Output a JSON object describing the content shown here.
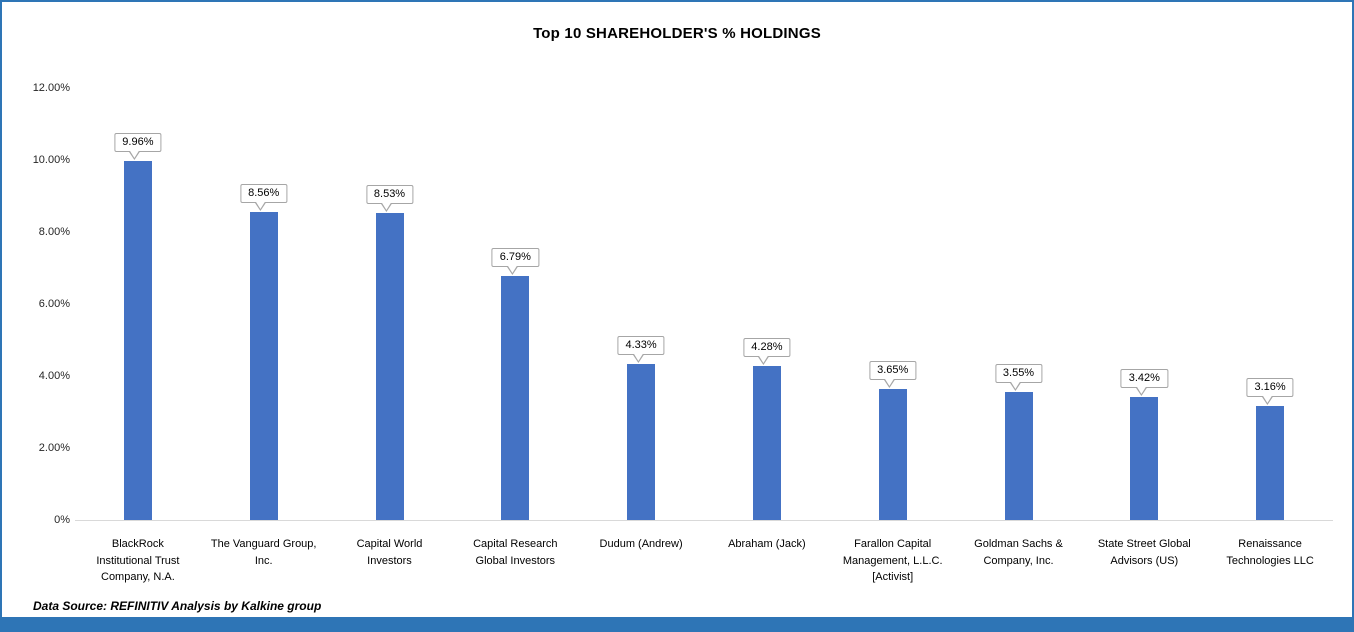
{
  "chart_data": {
    "type": "bar",
    "title": "Top 10 SHAREHOLDER'S % HOLDINGS",
    "categories": [
      "BlackRock\nInstitutional Trust\nCompany, N.A.",
      "The Vanguard Group,\nInc.",
      "Capital World\nInvestors",
      "Capital Research\nGlobal Investors",
      "Dudum (Andrew)",
      "Abraham (Jack)",
      "Farallon Capital\nManagement, L.L.C.\n[Activist]",
      "Goldman Sachs &\nCompany, Inc.",
      "State Street Global\nAdvisors (US)",
      "Renaissance\nTechnologies LLC"
    ],
    "values": [
      9.96,
      8.56,
      8.53,
      6.79,
      4.33,
      4.28,
      3.65,
      3.55,
      3.42,
      3.16
    ],
    "data_labels": [
      "9.96%",
      "8.56%",
      "8.53%",
      "6.79%",
      "4.33%",
      "4.28%",
      "3.65%",
      "3.55%",
      "3.42%",
      "3.16%"
    ],
    "xlabel": "",
    "ylabel": "",
    "ylim": [
      0,
      12
    ],
    "yticks": [
      {
        "value": 12,
        "label": "12.00%"
      },
      {
        "value": 10,
        "label": "10.00%"
      },
      {
        "value": 8,
        "label": "8.00%"
      },
      {
        "value": 6,
        "label": "6.00%"
      },
      {
        "value": 4,
        "label": "4.00%"
      },
      {
        "value": 2,
        "label": "2.00%"
      },
      {
        "value": 0,
        "label": "0%"
      }
    ],
    "grid": false,
    "legend": "none",
    "bar_color": "#4472C4"
  },
  "footer": {
    "source_note": "Data Source: REFINITIV Analysis by Kalkine group"
  },
  "frame": {
    "border_color": "#2E75B6",
    "bottom_band_color": "#2E75B6"
  }
}
